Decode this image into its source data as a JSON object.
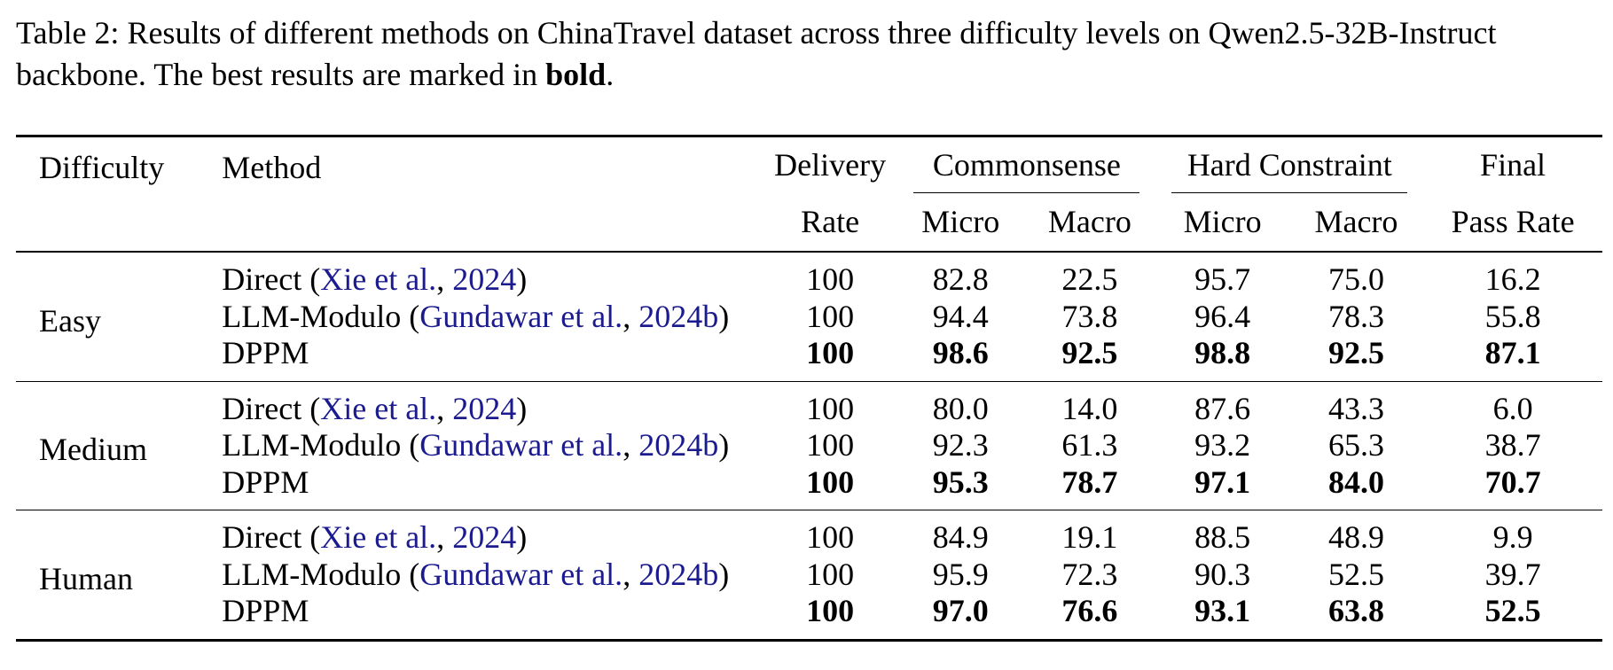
{
  "caption": {
    "prefix": "Table 2: Results of different methods on ChinaTravel dataset across three difficulty levels on Qwen2.5-32B-Instruct backbone. The best results are marked in ",
    "bold_word": "bold",
    "suffix": "."
  },
  "header": {
    "difficulty": "Difficulty",
    "method": "Method",
    "delivery_top": "Delivery",
    "delivery_bottom": "Rate",
    "commonsense": "Commonsense",
    "hard_constraint": "Hard Constraint",
    "final_top": "Final",
    "final_bottom": "Pass Rate",
    "micro": "Micro",
    "macro": "Macro"
  },
  "groups": [
    {
      "difficulty": "Easy",
      "rows": [
        {
          "method": "Direct",
          "open": " (",
          "cite_authors": "Xie et al.",
          "comma": ", ",
          "cite_year": "2024",
          "close": ")",
          "delivery": "100",
          "cs_micro": "82.8",
          "cs_macro": "22.5",
          "hc_micro": "95.7",
          "hc_macro": "75.0",
          "final": "16.2"
        },
        {
          "method": "LLM-Modulo",
          "open": " (",
          "cite_authors": "Gundawar et al.",
          "comma": ", ",
          "cite_year": "2024b",
          "close": ")",
          "delivery": "100",
          "cs_micro": "94.4",
          "cs_macro": "73.8",
          "hc_micro": "96.4",
          "hc_macro": "78.3",
          "final": "55.8"
        },
        {
          "method": "DPPM",
          "delivery": "100",
          "cs_micro": "98.6",
          "cs_macro": "92.5",
          "hc_micro": "98.8",
          "hc_macro": "92.5",
          "final": "87.1"
        }
      ]
    },
    {
      "difficulty": "Medium",
      "rows": [
        {
          "method": "Direct",
          "open": " (",
          "cite_authors": "Xie et al.",
          "comma": ", ",
          "cite_year": "2024",
          "close": ")",
          "delivery": "100",
          "cs_micro": "80.0",
          "cs_macro": "14.0",
          "hc_micro": "87.6",
          "hc_macro": "43.3",
          "final": "6.0"
        },
        {
          "method": "LLM-Modulo",
          "open": " (",
          "cite_authors": "Gundawar et al.",
          "comma": ", ",
          "cite_year": "2024b",
          "close": ")",
          "delivery": "100",
          "cs_micro": "92.3",
          "cs_macro": "61.3",
          "hc_micro": "93.2",
          "hc_macro": "65.3",
          "final": "38.7"
        },
        {
          "method": "DPPM",
          "delivery": "100",
          "cs_micro": "95.3",
          "cs_macro": "78.7",
          "hc_micro": "97.1",
          "hc_macro": "84.0",
          "final": "70.7"
        }
      ]
    },
    {
      "difficulty": "Human",
      "rows": [
        {
          "method": "Direct",
          "open": " (",
          "cite_authors": "Xie et al.",
          "comma": ", ",
          "cite_year": "2024",
          "close": ")",
          "delivery": "100",
          "cs_micro": "84.9",
          "cs_macro": "19.1",
          "hc_micro": "88.5",
          "hc_macro": "48.9",
          "final": "9.9"
        },
        {
          "method": "LLM-Modulo",
          "open": " (",
          "cite_authors": "Gundawar et al.",
          "comma": ", ",
          "cite_year": "2024b",
          "close": ")",
          "delivery": "100",
          "cs_micro": "95.9",
          "cs_macro": "72.3",
          "hc_micro": "90.3",
          "hc_macro": "52.5",
          "final": "39.7"
        },
        {
          "method": "DPPM",
          "delivery": "100",
          "cs_micro": "97.0",
          "cs_macro": "76.6",
          "hc_micro": "93.1",
          "hc_macro": "63.8",
          "final": "52.5"
        }
      ]
    }
  ],
  "colors": {
    "citation": "#1b1b8f",
    "text": "#000000"
  }
}
